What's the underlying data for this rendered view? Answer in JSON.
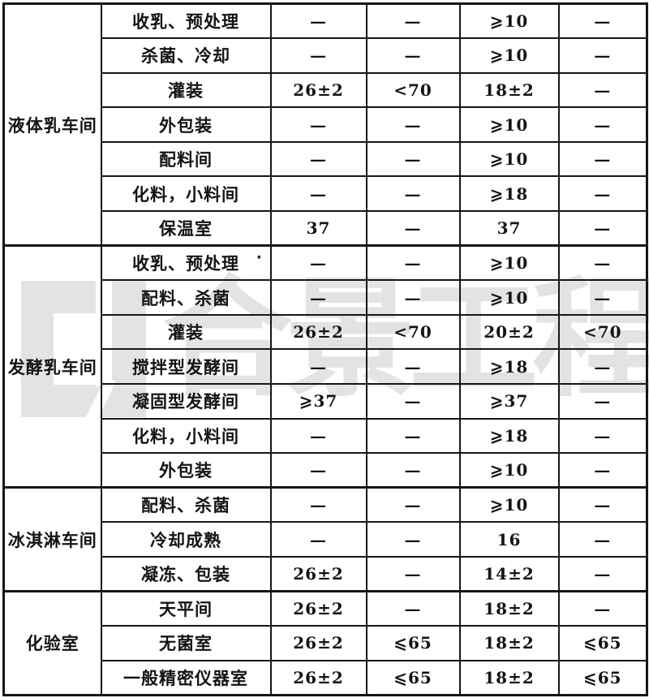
{
  "watermark": {
    "logo_name": "bracket-cj-logo",
    "text": "合景工程",
    "color": "#e3e3e3"
  },
  "artifacts": {
    "dot": "·"
  },
  "colors": {
    "line": "#161616",
    "text": "#141414",
    "background": "#ffffff",
    "watermark": "#e3e3e3"
  },
  "table": {
    "groups": [
      {
        "name": "液体乳车间",
        "rows": [
          {
            "room": "收乳、预处理",
            "values": [
              "—",
              "—",
              "⩾10",
              "—"
            ]
          },
          {
            "room": "杀菌、冷却",
            "values": [
              "—",
              "—",
              "⩾10",
              "—"
            ]
          },
          {
            "room": "灌装",
            "values": [
              "26±2",
              "<70",
              "18±2",
              "—"
            ]
          },
          {
            "room": "外包装",
            "values": [
              "—",
              "—",
              "⩾10",
              "—"
            ]
          },
          {
            "room": "配料间",
            "values": [
              "—",
              "—",
              "⩾10",
              "—"
            ]
          },
          {
            "room": "化料，小料间",
            "values": [
              "—",
              "—",
              "⩾18",
              "—"
            ]
          },
          {
            "room": "保温室",
            "values": [
              "37",
              "—",
              "37",
              "—"
            ]
          }
        ]
      },
      {
        "name": "发酵乳车间",
        "rows": [
          {
            "room": "收乳、预处理",
            "values": [
              "—",
              "—",
              "⩾10",
              "—"
            ]
          },
          {
            "room": "配料、杀菌",
            "values": [
              "—",
              "—",
              "⩾10",
              "—"
            ]
          },
          {
            "room": "灌装",
            "values": [
              "26±2",
              "<70",
              "20±2",
              "<70"
            ]
          },
          {
            "room": "搅拌型发酵间",
            "values": [
              "—",
              "—",
              "⩾18",
              "—"
            ]
          },
          {
            "room": "凝固型发酵间",
            "values": [
              "⩾37",
              "—",
              "⩾37",
              "—"
            ]
          },
          {
            "room": "化料，小料间",
            "values": [
              "—",
              "—",
              "⩾18",
              "—"
            ]
          },
          {
            "room": "外包装",
            "values": [
              "—",
              "—",
              "⩾10",
              "—"
            ]
          }
        ]
      },
      {
        "name": "冰淇淋车间",
        "rows": [
          {
            "room": "配料、杀菌",
            "values": [
              "—",
              "—",
              "⩾10",
              "—"
            ]
          },
          {
            "room": "冷却成熟",
            "values": [
              "—",
              "—",
              "16",
              "—"
            ]
          },
          {
            "room": "凝冻、包装",
            "values": [
              "26±2",
              "—",
              "14±2",
              "—"
            ]
          }
        ]
      },
      {
        "name": "化验室",
        "rows": [
          {
            "room": "天平间",
            "values": [
              "26±2",
              "—",
              "18±2",
              "—"
            ]
          },
          {
            "room": "无菌室",
            "values": [
              "26±2",
              "⩽65",
              "18±2",
              "⩽65"
            ]
          },
          {
            "room": "一般精密仪器室",
            "values": [
              "26±2",
              "⩽65",
              "18±2",
              "⩽65"
            ]
          }
        ]
      }
    ]
  }
}
